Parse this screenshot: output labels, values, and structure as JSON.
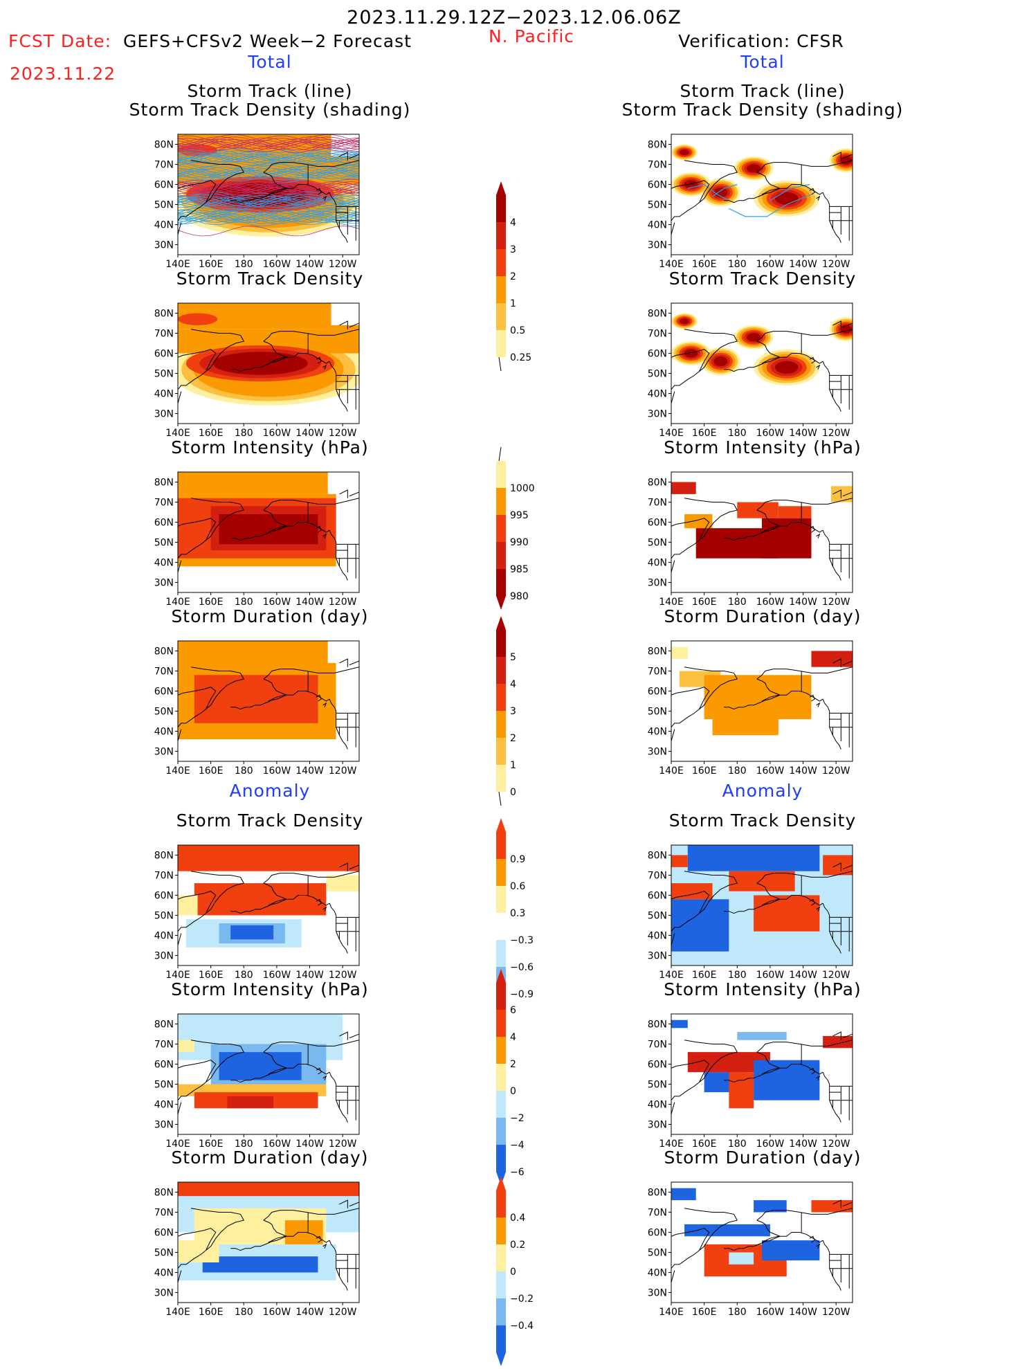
{
  "header": {
    "period": "2023.11.29.12Z−2023.12.06.06Z",
    "fcst_label": "FCST Date:",
    "fcst_date": "2023.11.22",
    "model": "GEFS+CFSv2 Week−2 Forecast",
    "region": "N. Pacific",
    "verification": "Verification: CFSR",
    "left_section_total": "Total",
    "right_section_total": "Total",
    "left_section_anomaly": "Anomaly",
    "right_section_anomaly": "Anomaly"
  },
  "panel_titles": {
    "track_line": "Storm Track (line)",
    "track_shading": "Storm Track Density (shading)",
    "density": "Storm Track Density",
    "intensity": "Storm Intensity (hPa)",
    "duration": "Storm Duration (day)"
  },
  "axes": {
    "lat_labels": [
      "80N",
      "70N",
      "60N",
      "50N",
      "40N",
      "30N"
    ],
    "lon_labels": [
      "140E",
      "160E",
      "180",
      "160W",
      "140W",
      "120W"
    ]
  },
  "colorbars": {
    "track_density_total": [
      "4",
      "3",
      "2",
      "1",
      "0.5",
      "0.25"
    ],
    "intensity_total": [
      "1000",
      "995",
      "990",
      "985",
      "980"
    ],
    "duration_total": [
      "5",
      "4",
      "3",
      "2",
      "1",
      "0"
    ],
    "density_anomaly": [
      "0.9",
      "0.6",
      "0.3",
      "−0.3",
      "−0.6",
      "−0.9"
    ],
    "intensity_anomaly": [
      "6",
      "4",
      "2",
      "0",
      "−2",
      "−4",
      "−6"
    ],
    "duration_anomaly": [
      "0.4",
      "0.2",
      "0",
      "−0.2",
      "−0.4"
    ]
  },
  "palette": {
    "dark_red": "#a50000",
    "red": "#d42010",
    "orange_red": "#f04010",
    "orange": "#fa9a00",
    "light_orange": "#fcc040",
    "pale_yellow": "#fff0a0",
    "light_blue": "#bfe8fa",
    "mid_blue": "#7ab8f0",
    "blue": "#1e64e0",
    "track_line": "#2a9ff0"
  }
}
